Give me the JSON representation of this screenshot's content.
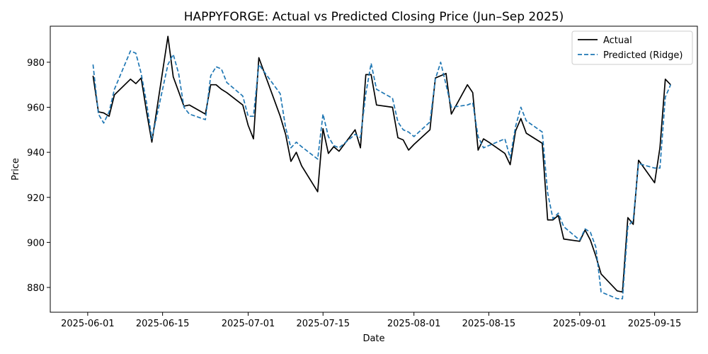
{
  "chart_data": {
    "type": "line",
    "title": "HAPPYFORGE: Actual vs Predicted Closing Price (Jun–Sep 2025)",
    "xlabel": "Date",
    "ylabel": "Price",
    "xlim": [
      "2025-05-25",
      "2025-09-23"
    ],
    "ylim": [
      869,
      996
    ],
    "x_ticks": [
      "2025-06-01",
      "2025-06-15",
      "2025-07-01",
      "2025-07-15",
      "2025-08-01",
      "2025-08-15",
      "2025-09-01",
      "2025-09-15"
    ],
    "y_ticks": [
      880,
      900,
      920,
      940,
      960,
      980
    ],
    "grid": false,
    "legend_position": "top-right",
    "x": [
      "2025-06-02",
      "2025-06-03",
      "2025-06-04",
      "2025-06-05",
      "2025-06-06",
      "2025-06-09",
      "2025-06-10",
      "2025-06-11",
      "2025-06-12",
      "2025-06-13",
      "2025-06-16",
      "2025-06-17",
      "2025-06-18",
      "2025-06-19",
      "2025-06-20",
      "2025-06-23",
      "2025-06-24",
      "2025-06-25",
      "2025-06-26",
      "2025-06-27",
      "2025-06-30",
      "2025-07-01",
      "2025-07-02",
      "2025-07-03",
      "2025-07-07",
      "2025-07-08",
      "2025-07-09",
      "2025-07-10",
      "2025-07-11",
      "2025-07-14",
      "2025-07-15",
      "2025-07-16",
      "2025-07-17",
      "2025-07-18",
      "2025-07-21",
      "2025-07-22",
      "2025-07-23",
      "2025-07-24",
      "2025-07-25",
      "2025-07-28",
      "2025-07-29",
      "2025-07-30",
      "2025-07-31",
      "2025-08-01",
      "2025-08-04",
      "2025-08-05",
      "2025-08-06",
      "2025-08-07",
      "2025-08-08",
      "2025-08-11",
      "2025-08-12",
      "2025-08-13",
      "2025-08-14",
      "2025-08-15",
      "2025-08-18",
      "2025-08-19",
      "2025-08-20",
      "2025-08-21",
      "2025-08-22",
      "2025-08-25",
      "2025-08-26",
      "2025-08-27",
      "2025-08-28",
      "2025-08-29",
      "2025-09-01",
      "2025-09-02",
      "2025-09-03",
      "2025-09-04",
      "2025-09-05",
      "2025-09-08",
      "2025-09-09",
      "2025-09-10",
      "2025-09-11",
      "2025-09-12",
      "2025-09-15",
      "2025-09-16",
      "2025-09-17",
      "2025-09-18"
    ],
    "series": [
      {
        "name": "Actual",
        "color": "#000000",
        "dash": "solid",
        "values": [
          974,
          958,
          957.5,
          956,
          965.5,
          972.5,
          970.5,
          973,
          958,
          944.5,
          991.5,
          973.5,
          967,
          960.5,
          961,
          957,
          970,
          970,
          968,
          966.5,
          961,
          952,
          946,
          982,
          956,
          948,
          936,
          940,
          934,
          922.5,
          950.5,
          939.5,
          942.5,
          940.5,
          950,
          942,
          974.5,
          974.5,
          961,
          960,
          946.5,
          945.5,
          941,
          943.5,
          950,
          973,
          974,
          975,
          957,
          970,
          966.5,
          941,
          946,
          944.5,
          939.5,
          934.5,
          949.5,
          955,
          948.5,
          944,
          910,
          910,
          912,
          901.5,
          900.5,
          905.5,
          901,
          894,
          886,
          878.5,
          878,
          911,
          908,
          936.5,
          926.5,
          942,
          972.5,
          970
        ]
      },
      {
        "name": "Predicted (Ridge)",
        "color": "#1f77b4",
        "dash": "dashed",
        "values": [
          979,
          957,
          953,
          958,
          968,
          985,
          984,
          975,
          962,
          946,
          979,
          983.5,
          975,
          960,
          957,
          954.5,
          974,
          978,
          977,
          971,
          965,
          956,
          956,
          979,
          966,
          951,
          942,
          944.5,
          942.5,
          937,
          957,
          947,
          943,
          942,
          948,
          946.5,
          966,
          979.5,
          968,
          964,
          953.5,
          950,
          949,
          947,
          953.5,
          972.5,
          980,
          970,
          960,
          961,
          962,
          947,
          942,
          943,
          946,
          937.5,
          951.5,
          960,
          954,
          949,
          922,
          910.5,
          913,
          907,
          901,
          906,
          904.5,
          898,
          878,
          875,
          875,
          907,
          910,
          935,
          933,
          933,
          964.5,
          970
        ]
      }
    ]
  }
}
